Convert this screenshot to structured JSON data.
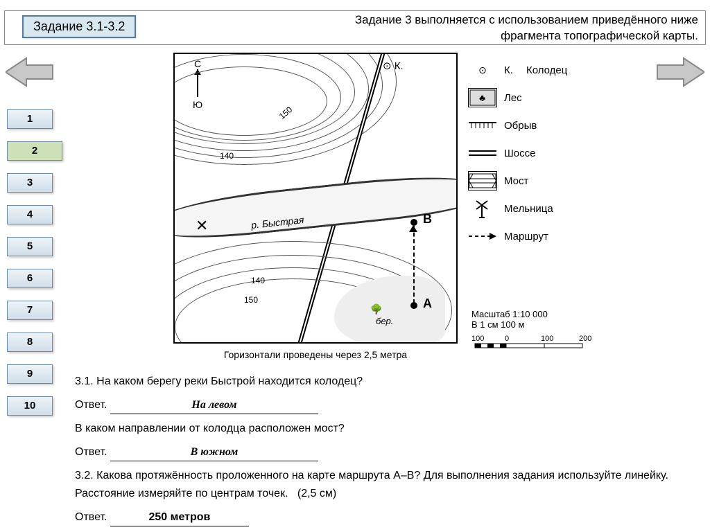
{
  "header": {
    "badge": "Задание 3.1-3.2",
    "note_line1": "Задание 3 выполняется с использованием приведённого ниже",
    "note_line2": "фрагмента  топографической карты."
  },
  "nav": {
    "items": [
      "1",
      "2",
      "3",
      "4",
      "5",
      "6",
      "7",
      "8",
      "9",
      "10"
    ],
    "active_index": 1
  },
  "arrows": {
    "left_color": "#b8b8b8",
    "right_color": "#b8b8b8"
  },
  "map": {
    "caption": "Горизонтали проведены через 2,5 метра",
    "river_name": "р. Быстрая",
    "compass_n": "С",
    "compass_s": "Ю",
    "well_symbol_label": "К.",
    "forest_label": "бер.",
    "contour_labels": [
      "150",
      "140",
      "140",
      "150"
    ],
    "points": {
      "A": "А",
      "B": "В"
    },
    "colors": {
      "line": "#333333",
      "bg": "#ffffff",
      "forest": "#eeeeee"
    }
  },
  "legend": {
    "items": [
      {
        "label": "Колодец",
        "type": "well",
        "pre": "К."
      },
      {
        "label": "Лес",
        "type": "forest"
      },
      {
        "label": "Обрыв",
        "type": "cliff"
      },
      {
        "label": "Шоссе",
        "type": "road"
      },
      {
        "label": "Мост",
        "type": "bridge"
      },
      {
        "label": "Мельница",
        "type": "windmill"
      },
      {
        "label": "Маршрут",
        "type": "route"
      }
    ]
  },
  "scale": {
    "title1": "Масштаб 1:10 000",
    "title2": "В 1 см 100 м",
    "ticks": [
      "100",
      "0",
      "100",
      "200"
    ]
  },
  "questions": {
    "q31_num": "3.1.",
    "q31_text": "На каком берегу реки Быстрой находится колодец?",
    "ans_label": "Ответ.",
    "q31_ans": "На левом",
    "q_mid_text": "В каком направлении от колодца расположен мост?",
    "q_mid_ans": "В южном",
    "q32_num": "3.2.",
    "q32_text": "Какова протяжённость проложенного на карте маршрута А–В? Для выполнения задания используйте линейку. Расстояние измеряйте по центрам точек.",
    "q32_hint": "(2,5 см)",
    "q32_ans": "250 метров"
  }
}
